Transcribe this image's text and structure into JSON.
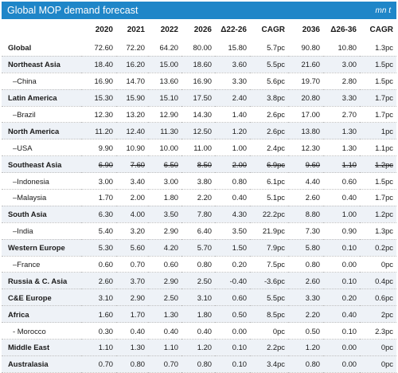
{
  "header": {
    "title": "Global MOP demand forecast",
    "unit": "mn t"
  },
  "columns": [
    "2020",
    "2021",
    "2022",
    "2026",
    "Δ22-26",
    "CAGR",
    "2036",
    "Δ26-36",
    "CAGR"
  ],
  "rows": [
    {
      "label": "Global",
      "values": [
        "72.60",
        "72.20",
        "64.20",
        "80.00",
        "15.80",
        "5.7pc",
        "90.80",
        "10.80",
        "1.3pc"
      ]
    },
    {
      "label": "Northeast Asia",
      "values": [
        "18.40",
        "16.20",
        "15.00",
        "18.60",
        "3.60",
        "5.5pc",
        "21.60",
        "3.00",
        "1.5pc"
      ]
    },
    {
      "label": "–China",
      "values": [
        "16.90",
        "14.70",
        "13.60",
        "16.90",
        "3.30",
        "5.6pc",
        "19.70",
        "2.80",
        "1.5pc"
      ]
    },
    {
      "label": "Latin America",
      "values": [
        "15.30",
        "15.90",
        "15.10",
        "17.50",
        "2.40",
        "3.8pc",
        "20.80",
        "3.30",
        "1.7pc"
      ]
    },
    {
      "label": "–Brazil",
      "values": [
        "12.30",
        "13.20",
        "12.90",
        "14.30",
        "1.40",
        "2.6pc",
        "17.00",
        "2.70",
        "1.7pc"
      ]
    },
    {
      "label": "North America",
      "values": [
        "11.20",
        "12.40",
        "11.30",
        "12.50",
        "1.20",
        "2.6pc",
        "13.80",
        "1.30",
        "1pc"
      ]
    },
    {
      "label": "–USA",
      "values": [
        "9.90",
        "10.90",
        "10.00",
        "11.00",
        "1.00",
        "2.4pc",
        "12.30",
        "1.30",
        "1.1pc"
      ]
    },
    {
      "label": "Southeast Asia",
      "values": [
        "6.90",
        "7.60",
        "6.50",
        "8.50",
        "2.00",
        "6.9pc",
        "9.60",
        "1.10",
        "1.2pc"
      ]
    },
    {
      "label": "–Indonesia",
      "values": [
        "3.00",
        "3.40",
        "3.00",
        "3.80",
        "0.80",
        "6.1pc",
        "4.40",
        "0.60",
        "1.5pc"
      ]
    },
    {
      "label": "–Malaysia",
      "values": [
        "1.70",
        "2.00",
        "1.80",
        "2.20",
        "0.40",
        "5.1pc",
        "2.60",
        "0.40",
        "1.7pc"
      ]
    },
    {
      "label": "South Asia",
      "values": [
        "6.30",
        "4.00",
        "3.50",
        "7.80",
        "4.30",
        "22.2pc",
        "8.80",
        "1.00",
        "1.2pc"
      ]
    },
    {
      "label": "–India",
      "values": [
        "5.40",
        "3.20",
        "2.90",
        "6.40",
        "3.50",
        "21.9pc",
        "7.30",
        "0.90",
        "1.3pc"
      ]
    },
    {
      "label": "Western Europe",
      "values": [
        "5.30",
        "5.60",
        "4.20",
        "5.70",
        "1.50",
        "7.9pc",
        "5.80",
        "0.10",
        "0.2pc"
      ]
    },
    {
      "label": "–France",
      "values": [
        "0.60",
        "0.70",
        "0.60",
        "0.80",
        "0.20",
        "7.5pc",
        "0.80",
        "0.00",
        "0pc"
      ]
    },
    {
      "label": "Russia & C. Asia",
      "values": [
        "2.60",
        "3.70",
        "2.90",
        "2.50",
        "-0.40",
        "-3.6pc",
        "2.60",
        "0.10",
        "0.4pc"
      ]
    },
    {
      "label": "C&E Europe",
      "values": [
        "3.10",
        "2.90",
        "2.50",
        "3.10",
        "0.60",
        "5.5pc",
        "3.30",
        "0.20",
        "0.6pc"
      ]
    },
    {
      "label": "Africa",
      "values": [
        "1.60",
        "1.70",
        "1.30",
        "1.80",
        "0.50",
        "8.5pc",
        "2.20",
        "0.40",
        "2pc"
      ]
    },
    {
      "label": "- Morocco",
      "values": [
        "0.30",
        "0.40",
        "0.40",
        "0.40",
        "0.00",
        "0pc",
        "0.50",
        "0.10",
        "2.3pc"
      ]
    },
    {
      "label": "Middle East",
      "values": [
        "1.10",
        "1.30",
        "1.10",
        "1.20",
        "0.10",
        "2.2pc",
        "1.20",
        "0.00",
        "0pc"
      ]
    },
    {
      "label": "Australasia",
      "values": [
        "0.70",
        "0.80",
        "0.70",
        "0.80",
        "0.10",
        "3.4pc",
        "0.80",
        "0.00",
        "0pc"
      ]
    }
  ]
}
